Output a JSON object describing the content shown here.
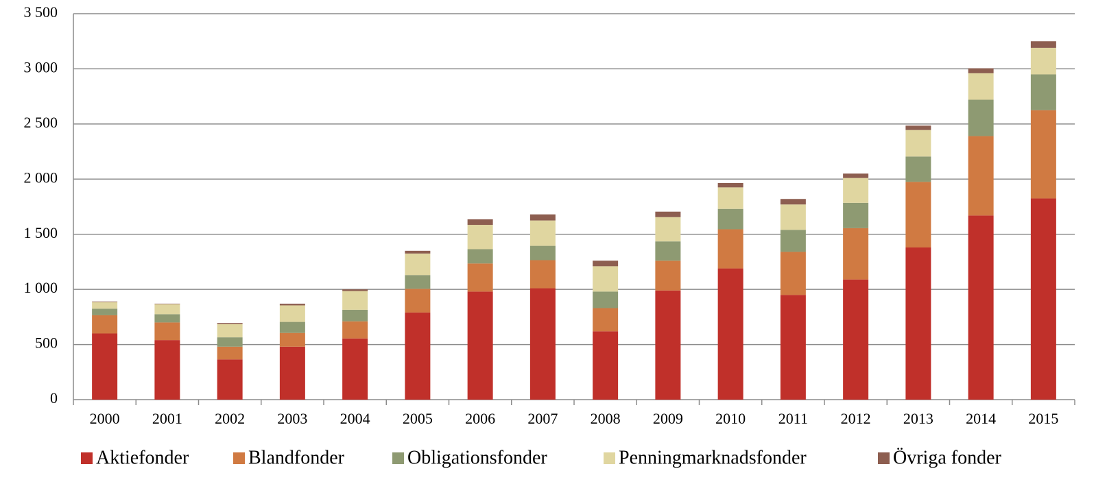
{
  "chart_data": {
    "type": "stacked_bar",
    "categories": [
      "2000",
      "2001",
      "2002",
      "2003",
      "2004",
      "2005",
      "2006",
      "2007",
      "2008",
      "2009",
      "2010",
      "2011",
      "2012",
      "2013",
      "2014",
      "2015"
    ],
    "series": [
      {
        "name": "Aktiefonder",
        "color": "#c0302a",
        "values": [
          600,
          540,
          365,
          480,
          555,
          790,
          980,
          1010,
          620,
          990,
          1190,
          950,
          1090,
          1380,
          1670,
          1825
        ]
      },
      {
        "name": "Blandfonder",
        "color": "#d07a42",
        "values": [
          165,
          160,
          115,
          125,
          155,
          215,
          255,
          255,
          210,
          270,
          355,
          390,
          465,
          595,
          720,
          800
        ]
      },
      {
        "name": "Obligationsfonder",
        "color": "#8e9a72",
        "values": [
          60,
          75,
          85,
          100,
          105,
          125,
          130,
          130,
          150,
          175,
          185,
          200,
          230,
          230,
          330,
          325
        ]
      },
      {
        "name": "Penningmarknadsfonder",
        "color": "#e0d6a0",
        "values": [
          60,
          90,
          120,
          150,
          170,
          195,
          220,
          230,
          230,
          220,
          195,
          230,
          225,
          240,
          240,
          240
        ]
      },
      {
        "name": "Övriga fonder",
        "color": "#8d5e50",
        "values": [
          5,
          5,
          10,
          15,
          15,
          25,
          50,
          55,
          50,
          50,
          40,
          50,
          40,
          40,
          45,
          60
        ]
      }
    ],
    "ylim": [
      0,
      3500
    ],
    "yticks": [
      0,
      500,
      {
        "value": 1000,
        "label": "1 000"
      },
      {
        "value": 1500,
        "label": "1 500"
      },
      {
        "value": 2000,
        "label": "2 000"
      },
      {
        "value": 2500,
        "label": "2 500"
      },
      {
        "value": 3000,
        "label": "3 000"
      },
      {
        "value": 3500,
        "label": "3 500"
      }
    ],
    "grid": true,
    "legend": "bottom"
  }
}
